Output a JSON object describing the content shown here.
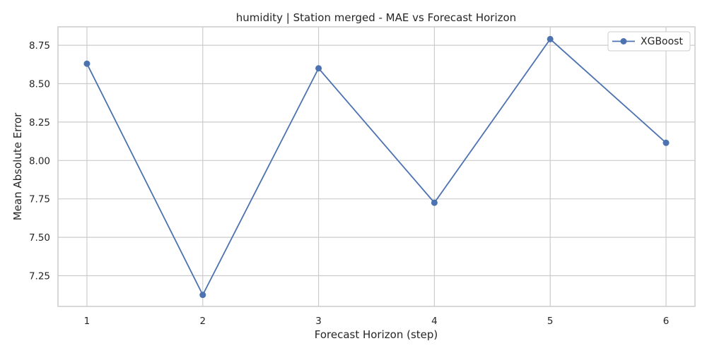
{
  "chart_data": {
    "type": "line",
    "title": "humidity | Station merged - MAE vs Forecast Horizon",
    "xlabel": "Forecast Horizon (step)",
    "ylabel": "Mean Absolute Error",
    "x": [
      1,
      2,
      3,
      4,
      5,
      6
    ],
    "x_ticks": [
      "1",
      "2",
      "3",
      "4",
      "5",
      "6"
    ],
    "y_ticks": [
      "7.25",
      "7.50",
      "7.75",
      "8.00",
      "8.25",
      "8.50",
      "8.75"
    ],
    "xlim": [
      0.75,
      6.25
    ],
    "ylim": [
      7.05,
      8.87
    ],
    "grid": true,
    "legend_position": "top-right",
    "series": [
      {
        "name": "XGBoost",
        "color": "#4c72b0",
        "marker": "circle",
        "values": [
          8.63,
          7.125,
          8.6,
          7.725,
          8.79,
          8.115
        ]
      }
    ]
  }
}
